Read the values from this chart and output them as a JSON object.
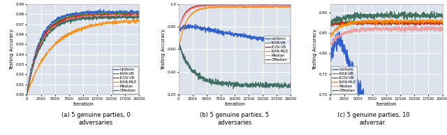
{
  "figsize": [
    6.4,
    1.93
  ],
  "dpi": 100,
  "x_max": 20000,
  "x_ticks": [
    0,
    2500,
    5000,
    7500,
    10000,
    12500,
    15000,
    17500,
    20000
  ],
  "bg_color": "#dde3ed",
  "grid_color": "white",
  "legend_labels": [
    "Uniform",
    "IVAR-VB",
    "ICOV-VB",
    "IVAR-MLE",
    "Median",
    "CMedian"
  ],
  "captions": [
    "(a) 5 genuine parties, 0\nadversaries",
    "(b) 5 genuine parties, 5\nadversaries",
    "(c) 5 genuine parties, 10\nadversar."
  ],
  "plot1": {
    "ylim": [
      0.9,
      0.99
    ],
    "yticks": [
      0.9,
      0.91,
      0.92,
      0.93,
      0.94,
      0.95,
      0.96,
      0.97,
      0.98,
      0.99
    ],
    "ylabel": "Testing Accuracy",
    "xlabel": "Iteration",
    "legend_loc": "lower right",
    "curves": {
      "Uniform": {
        "color": "#2255cc",
        "lw": 1.0
      },
      "IVAR-VB": {
        "color": "#339933",
        "lw": 0.9
      },
      "ICOV-VB": {
        "color": "#cc2222",
        "lw": 0.9
      },
      "IVAR-MLE": {
        "color": "#ff8800",
        "lw": 0.9
      },
      "Median": {
        "color": "#ee9999",
        "lw": 0.9
      },
      "CMedian": {
        "color": "#336655",
        "lw": 0.9
      }
    }
  },
  "plot2": {
    "ylim": [
      0.2,
      1.0
    ],
    "yticks": [
      0.2,
      0.4,
      0.6,
      0.8,
      1.0
    ],
    "ylabel": "Testing Accuracy",
    "xlabel": "Iteration",
    "legend_loc": "center right",
    "curves": {
      "Uniform": {
        "color": "#2255cc",
        "lw": 1.0
      },
      "IVAR-VB": {
        "color": "#339933",
        "lw": 0.9
      },
      "ICOV-VB": {
        "color": "#cc2222",
        "lw": 1.0
      },
      "IVAR-MLE": {
        "color": "#ff8800",
        "lw": 0.9
      },
      "Median": {
        "color": "#ee9999",
        "lw": 0.9
      },
      "CMedian": {
        "color": "#336655",
        "lw": 0.9
      }
    }
  },
  "plot3": {
    "ylim": [
      0.7,
      0.92
    ],
    "yticks": [
      0.7,
      0.75,
      0.8,
      0.85,
      0.9
    ],
    "ylabel": "Testing Accuracy",
    "xlabel": "Iteration",
    "legend_loc": "lower left",
    "curves": {
      "Uniform": {
        "color": "#2255cc",
        "lw": 1.0
      },
      "IVAR-VB": {
        "color": "#339933",
        "lw": 0.9
      },
      "ICOV-VB": {
        "color": "#cc2222",
        "lw": 0.9
      },
      "IVAR-MLE": {
        "color": "#ff8800",
        "lw": 1.0
      },
      "Median": {
        "color": "#ee9999",
        "lw": 0.9
      },
      "CMedian": {
        "color": "#336655",
        "lw": 0.9
      }
    }
  }
}
